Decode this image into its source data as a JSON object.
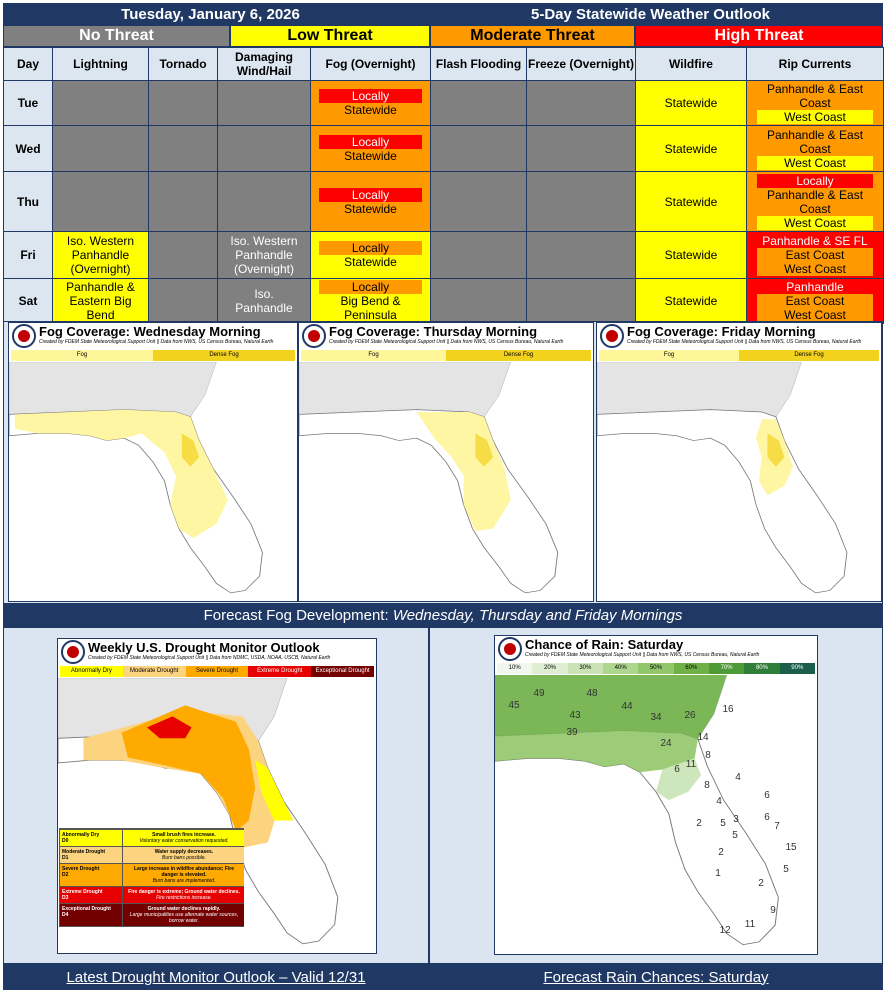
{
  "header": {
    "date": "Tuesday, January 6, 2026",
    "title": "5-Day Statewide Weather Outlook"
  },
  "threat_legend": [
    {
      "label": "No Threat",
      "color": "#808080"
    },
    {
      "label": "Low Threat",
      "color": "#ffff00"
    },
    {
      "label": "Moderate Threat",
      "color": "#ff9900"
    },
    {
      "label": "High Threat",
      "color": "#ff0000"
    }
  ],
  "table": {
    "columns": [
      "Day",
      "Lightning",
      "Tornado",
      "Damaging Wind/Hail",
      "Fog (Overnight)",
      "Flash Flooding",
      "Freeze (Overnight)",
      "Wildfire",
      "Rip Currents"
    ],
    "rows": [
      {
        "day": "Tue",
        "cells": [
          {
            "color": "#808080"
          },
          {
            "color": "#808080"
          },
          {
            "color": "#808080"
          },
          {
            "color": "#ff9900",
            "items": [
              {
                "text": "Locally",
                "color": "#ff0000"
              },
              {
                "text": "Statewide",
                "color": "#ff9900"
              }
            ]
          },
          {
            "color": "#808080"
          },
          {
            "color": "#808080"
          },
          {
            "color": "#ffff00",
            "items": [
              {
                "text": "Statewide",
                "color": "#ffff00"
              }
            ]
          },
          {
            "color": "#ff9900",
            "items": [
              {
                "text": "Panhandle & East Coast",
                "color": "#ff9900"
              },
              {
                "text": "West Coast",
                "color": "#ffff00"
              }
            ]
          }
        ]
      },
      {
        "day": "Wed",
        "cells": [
          {
            "color": "#808080"
          },
          {
            "color": "#808080"
          },
          {
            "color": "#808080"
          },
          {
            "color": "#ff9900",
            "items": [
              {
                "text": "Locally",
                "color": "#ff0000"
              },
              {
                "text": "Statewide",
                "color": "#ff9900"
              }
            ]
          },
          {
            "color": "#808080"
          },
          {
            "color": "#808080"
          },
          {
            "color": "#ffff00",
            "items": [
              {
                "text": "Statewide",
                "color": "#ffff00"
              }
            ]
          },
          {
            "color": "#ff9900",
            "items": [
              {
                "text": "Panhandle & East Coast",
                "color": "#ff9900"
              },
              {
                "text": "West Coast",
                "color": "#ffff00"
              }
            ]
          }
        ]
      },
      {
        "day": "Thu",
        "cells": [
          {
            "color": "#808080"
          },
          {
            "color": "#808080"
          },
          {
            "color": "#808080"
          },
          {
            "color": "#ff9900",
            "items": [
              {
                "text": "Locally",
                "color": "#ff0000"
              },
              {
                "text": "Statewide",
                "color": "#ff9900"
              }
            ]
          },
          {
            "color": "#808080"
          },
          {
            "color": "#808080"
          },
          {
            "color": "#ffff00",
            "items": [
              {
                "text": "Statewide",
                "color": "#ffff00"
              }
            ]
          },
          {
            "color": "#ff9900",
            "items": [
              {
                "text": "Locally",
                "color": "#ff0000"
              },
              {
                "text": "Panhandle & East Coast",
                "color": "#ff9900"
              },
              {
                "text": "West Coast",
                "color": "#ffff00"
              }
            ]
          }
        ]
      },
      {
        "day": "Fri",
        "cells": [
          {
            "color": "#ffff00",
            "items": [
              {
                "text": "Iso. Western Panhandle (Overnight)",
                "color": "#ffff00"
              }
            ]
          },
          {
            "color": "#808080"
          },
          {
            "color": "#808080",
            "items": [
              {
                "text": "Iso. Western Panhandle (Overnight)",
                "color": "#808080"
              }
            ]
          },
          {
            "color": "#ffff00",
            "items": [
              {
                "text": "Locally",
                "color": "#ff9900"
              },
              {
                "text": "Statewide",
                "color": "#ffff00"
              }
            ]
          },
          {
            "color": "#808080"
          },
          {
            "color": "#808080"
          },
          {
            "color": "#ffff00",
            "items": [
              {
                "text": "Statewide",
                "color": "#ffff00"
              }
            ]
          },
          {
            "color": "#ff0000",
            "items": [
              {
                "text": "Panhandle & SE FL",
                "color": "#ff0000"
              },
              {
                "text": "East Coast",
                "color": "#ff9900"
              },
              {
                "text": "West Coast",
                "color": "#ff9900"
              }
            ]
          }
        ]
      },
      {
        "day": "Sat",
        "cells": [
          {
            "color": "#ffff00",
            "items": [
              {
                "text": "Panhandle & Eastern Big Bend",
                "color": "#ffff00"
              }
            ]
          },
          {
            "color": "#808080"
          },
          {
            "color": "#808080",
            "items": [
              {
                "text": "Iso. Panhandle",
                "color": "#808080"
              }
            ]
          },
          {
            "color": "#ffff00",
            "items": [
              {
                "text": "Locally",
                "color": "#ff9900"
              },
              {
                "text": "Big Bend & Peninsula",
                "color": "#ffff00"
              }
            ]
          },
          {
            "color": "#808080"
          },
          {
            "color": "#808080"
          },
          {
            "color": "#ffff00",
            "items": [
              {
                "text": "Statewide",
                "color": "#ffff00"
              }
            ]
          },
          {
            "color": "#ff0000",
            "items": [
              {
                "text": "Panhandle",
                "color": "#ff0000"
              },
              {
                "text": "East Coast",
                "color": "#ff9900"
              },
              {
                "text": "West Coast",
                "color": "#ff9900"
              }
            ]
          }
        ]
      }
    ]
  },
  "fog_maps": [
    {
      "title": "Fog Coverage: Wednesday Morning",
      "credit": "Created by FDEM State Meteorological Support Unit || Data from NWS, US Census Bureau, Natural Earth",
      "legend": [
        {
          "text": "Fog",
          "color": "#fff599"
        },
        {
          "text": "Dense Fog",
          "color": "#f2d21c"
        }
      ]
    },
    {
      "title": "Fog Coverage: Thursday Morning",
      "credit": "Created by FDEM State Meteorological Support Unit || Data from NWS, US Census Bureau, Natural Earth",
      "legend": [
        {
          "text": "Fog",
          "color": "#fff599"
        },
        {
          "text": "Dense Fog",
          "color": "#f2d21c"
        }
      ]
    },
    {
      "title": "Fog Coverage: Friday Morning",
      "credit": "Created by FDEM State Meteorological Support Unit || Data from NWS, US Census Bureau, Natural Earth",
      "legend": [
        {
          "text": "Fog",
          "color": "#fff599"
        },
        {
          "text": "Dense Fog",
          "color": "#f2d21c"
        }
      ]
    }
  ],
  "fog_caption": {
    "prefix": "Forecast Fog Development: ",
    "emphasis": "Wednesday, Thursday and Friday Mornings"
  },
  "drought_map": {
    "title": "Weekly U.S. Drought Monitor Outlook",
    "credit": "Created by FDEM State Meteorological Support Unit || Data from NDMC, USDA, NOAA, USCB, Natural Earth",
    "legend": [
      {
        "text": "Abnormally Dry",
        "color": "#ffff00"
      },
      {
        "text": "Moderate Drought",
        "color": "#fcd37f"
      },
      {
        "text": "Severe Drought",
        "color": "#ffaa00"
      },
      {
        "text": "Extreme Drought",
        "color": "#e60000"
      },
      {
        "text": "Exceptional Drought",
        "color": "#730000"
      }
    ],
    "key": [
      {
        "category": "Abnormally Dry",
        "code": "D0",
        "impact": "Small brush fires increase.",
        "note": "Voluntary water conservation requested.",
        "color": "#ffff00"
      },
      {
        "category": "Moderate Drought",
        "code": "D1",
        "impact": "Water supply decreases.",
        "note": "Burn bans possible.",
        "color": "#fcd37f"
      },
      {
        "category": "Severe Drought",
        "code": "D2",
        "impact": "Large increase in wildfire abundance; Fire danger is elevated.",
        "note": "Burn bans are implemented.",
        "color": "#ffaa00"
      },
      {
        "category": "Extreme Drought",
        "code": "D3",
        "impact": "Fire danger is extreme; Ground water declines.",
        "note": "Fire restrictions increase.",
        "color": "#e60000"
      },
      {
        "category": "Exceptional Drought",
        "code": "D4",
        "impact": "Ground water declines rapidly.",
        "note": "Large municipalities use alternate water sources, borrow water.",
        "color": "#730000"
      }
    ]
  },
  "drought_caption": "Latest Drought Monitor Outlook – Valid 12/31",
  "rain_map": {
    "title": "Chance of Rain: Saturday",
    "credit": "Created by FDEM State Meteorological Support Unit || Data from NWS, US Census Bureau, Natural Earth",
    "scale": [
      {
        "text": "10%",
        "color": "#f2f7ee"
      },
      {
        "text": "20%",
        "color": "#dfeed3"
      },
      {
        "text": "30%",
        "color": "#c9e3b4"
      },
      {
        "text": "40%",
        "color": "#afd68f"
      },
      {
        "text": "50%",
        "color": "#92c66a"
      },
      {
        "text": "60%",
        "color": "#6fb147"
      },
      {
        "text": "70%",
        "color": "#4d9a36"
      },
      {
        "text": "80%",
        "color": "#2f7f3a"
      },
      {
        "text": "90%",
        "color": "#1b5e4a"
      }
    ],
    "labels": [
      "49",
      "48",
      "45",
      "44",
      "43",
      "39",
      "34",
      "26",
      "16",
      "24",
      "14",
      "11",
      "8",
      "6",
      "8",
      "4",
      "6",
      "6",
      "4",
      "5",
      "2",
      "3",
      "7",
      "5",
      "15",
      "2",
      "5",
      "1",
      "2",
      "9",
      "12",
      "11"
    ]
  },
  "rain_caption": "Forecast Rain Chances: Saturday"
}
